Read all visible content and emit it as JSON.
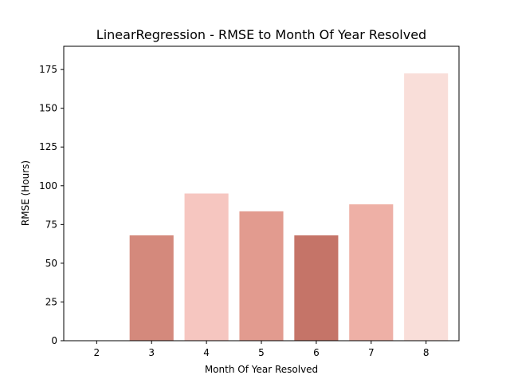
{
  "chart_data": {
    "type": "bar",
    "title": "LinearRegression - RMSE to Month Of Year Resolved",
    "xlabel": "Month Of Year Resolved",
    "ylabel": "RMSE (Hours)",
    "categories": [
      "2",
      "3",
      "4",
      "5",
      "6",
      "7",
      "8"
    ],
    "values": [
      0,
      68,
      95,
      83.5,
      68,
      88,
      172.5
    ],
    "colors": [
      "#c87468",
      "#d4897c",
      "#f6c6c0",
      "#e29b8f",
      "#c57468",
      "#eeb0a6",
      "#f9ded9"
    ],
    "ylim": [
      0,
      190
    ],
    "yticks": [
      0,
      25,
      50,
      75,
      100,
      125,
      150,
      175
    ],
    "grid": false,
    "legend": "none"
  }
}
